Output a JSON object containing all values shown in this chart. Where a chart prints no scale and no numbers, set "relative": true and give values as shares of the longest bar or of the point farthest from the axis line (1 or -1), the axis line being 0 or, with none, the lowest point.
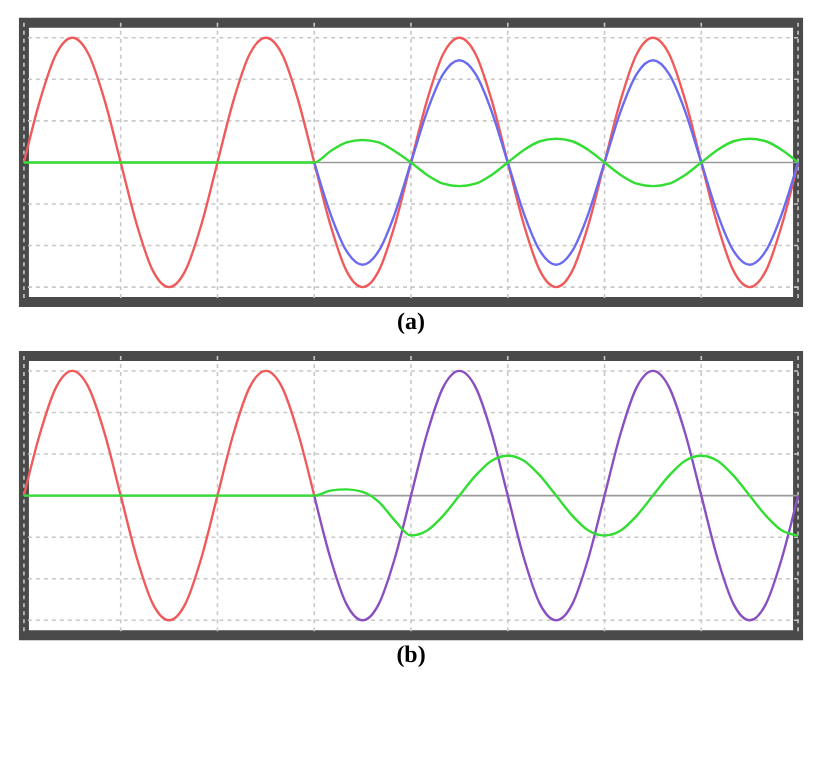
{
  "chart_data": [
    {
      "type": "line",
      "title": "(a)",
      "relative": true,
      "grid": true,
      "categories": [
        null,
        null,
        null,
        null,
        null,
        null,
        null,
        null,
        null,
        null,
        null,
        null,
        null,
        null,
        null,
        null,
        null,
        null,
        null,
        null,
        null,
        null,
        null,
        null,
        null,
        null,
        null,
        null,
        null,
        null,
        null,
        null,
        null,
        null,
        null,
        null,
        null,
        null,
        null,
        null,
        null,
        null,
        null,
        null,
        null,
        null,
        null,
        null,
        null
      ],
      "series": [
        {
          "color": "#f05a5a",
          "values": [
            0,
            0.5,
            0.87,
            1,
            0.87,
            0.5,
            0,
            -0.5,
            -0.87,
            -1,
            -0.87,
            -0.5,
            0,
            0.5,
            0.87,
            1,
            0.87,
            0.5,
            0,
            -0.5,
            -0.87,
            -1,
            -0.87,
            -0.5,
            0,
            0.5,
            0.87,
            1,
            0.87,
            0.5,
            0,
            -0.5,
            -0.87,
            -1,
            -0.87,
            -0.5,
            0,
            0.5,
            0.87,
            1,
            0.87,
            0.5,
            0,
            -0.5,
            -0.87,
            -1,
            -0.87,
            -0.5,
            0
          ]
        },
        {
          "color": "#6b6bf0",
          "values": [
            null,
            null,
            null,
            null,
            null,
            null,
            null,
            null,
            null,
            null,
            null,
            null,
            null,
            null,
            null,
            null,
            null,
            null,
            0,
            -0.41,
            -0.71,
            -0.82,
            -0.71,
            -0.41,
            0,
            0.41,
            0.71,
            0.82,
            0.71,
            0.41,
            0,
            -0.41,
            -0.71,
            -0.82,
            -0.71,
            -0.41,
            0,
            0.41,
            0.71,
            0.82,
            0.71,
            0.41,
            0,
            -0.41,
            -0.71,
            -0.82,
            -0.71,
            -0.41,
            0
          ]
        },
        {
          "color": "#33dd33",
          "values": [
            0,
            0,
            0,
            0,
            0,
            0,
            0,
            0,
            0,
            0,
            0,
            0,
            0,
            0,
            0,
            0,
            0,
            0,
            0,
            0.09,
            0.16,
            0.18,
            0.16,
            0.09,
            0,
            -0.1,
            -0.17,
            -0.19,
            -0.17,
            -0.1,
            0,
            0.1,
            0.17,
            0.19,
            0.17,
            0.1,
            0,
            -0.1,
            -0.17,
            -0.19,
            -0.17,
            -0.1,
            0,
            0.1,
            0.17,
            0.19,
            0.17,
            0.1,
            0
          ]
        }
      ]
    },
    {
      "type": "line",
      "title": "(b)",
      "relative": true,
      "grid": true,
      "categories": [
        null,
        null,
        null,
        null,
        null,
        null,
        null,
        null,
        null,
        null,
        null,
        null,
        null,
        null,
        null,
        null,
        null,
        null,
        null,
        null,
        null,
        null,
        null,
        null,
        null,
        null,
        null,
        null,
        null,
        null,
        null,
        null,
        null,
        null,
        null,
        null,
        null,
        null,
        null,
        null,
        null,
        null,
        null,
        null,
        null,
        null,
        null,
        null,
        null
      ],
      "series": [
        {
          "color": "#f05a5a",
          "values": [
            0,
            0.5,
            0.87,
            1,
            0.87,
            0.5,
            0,
            -0.5,
            -0.87,
            -1,
            -0.87,
            -0.5,
            0,
            0.5,
            0.87,
            1,
            0.87,
            0.5,
            0,
            null,
            null,
            null,
            null,
            null,
            null,
            null,
            null,
            null,
            null,
            null,
            null,
            null,
            null,
            null,
            null,
            null,
            null,
            null,
            null,
            null,
            null,
            null,
            null,
            null,
            null,
            null,
            null,
            null,
            null
          ]
        },
        {
          "color": "#8a4fc0",
          "values": [
            null,
            null,
            null,
            null,
            null,
            null,
            null,
            null,
            null,
            null,
            null,
            null,
            null,
            null,
            null,
            null,
            null,
            null,
            0,
            -0.5,
            -0.87,
            -1,
            -0.87,
            -0.5,
            0,
            0.5,
            0.87,
            1,
            0.87,
            0.5,
            0,
            -0.5,
            -0.87,
            -1,
            -0.87,
            -0.5,
            0,
            0.5,
            0.87,
            1,
            0.87,
            0.5,
            0,
            -0.5,
            -0.87,
            -1,
            -0.87,
            -0.5,
            0
          ]
        },
        {
          "color": "#33dd33",
          "values": [
            0,
            0,
            0,
            0,
            0,
            0,
            0,
            0,
            0,
            0,
            0,
            0,
            0,
            0,
            0,
            0,
            0,
            0,
            0,
            0.04,
            0.05,
            0.03,
            -0.05,
            -0.2,
            -0.32,
            -0.28,
            -0.16,
            0,
            0.16,
            0.28,
            0.32,
            0.28,
            0.16,
            0,
            -0.16,
            -0.28,
            -0.32,
            -0.28,
            -0.16,
            0,
            0.16,
            0.28,
            0.32,
            0.28,
            0.16,
            0,
            -0.16,
            -0.28,
            -0.32
          ]
        }
      ]
    }
  ]
}
